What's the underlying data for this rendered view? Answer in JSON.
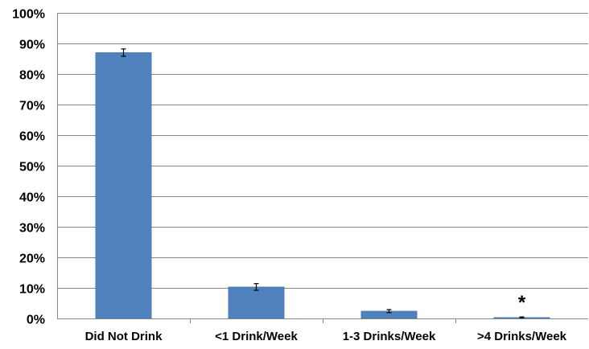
{
  "chart_data": {
    "type": "bar",
    "title": "",
    "xlabel": "",
    "ylabel": "",
    "categories": [
      "Did Not Drink",
      "<1 Drink/Week",
      "1-3 Drinks/Week",
      ">4 Drinks/Week"
    ],
    "values": [
      87.0,
      10.3,
      2.4,
      0.3
    ],
    "error": [
      1.2,
      1.1,
      0.5,
      0.2
    ],
    "ylim": [
      0,
      100
    ],
    "yticks": [
      "0%",
      "10%",
      "20%",
      "30%",
      "40%",
      "50%",
      "60%",
      "70%",
      "80%",
      "90%",
      "100%"
    ],
    "grid": true,
    "legend": "none",
    "annotations": [
      {
        "category": ">4 Drinks/Week",
        "text": "*"
      }
    ],
    "colors": {
      "bar": "#4f81bd",
      "bar_edge": "#3a6aa5",
      "grid": "#868686",
      "axis": "#868686",
      "error_bar": "#000000"
    }
  }
}
